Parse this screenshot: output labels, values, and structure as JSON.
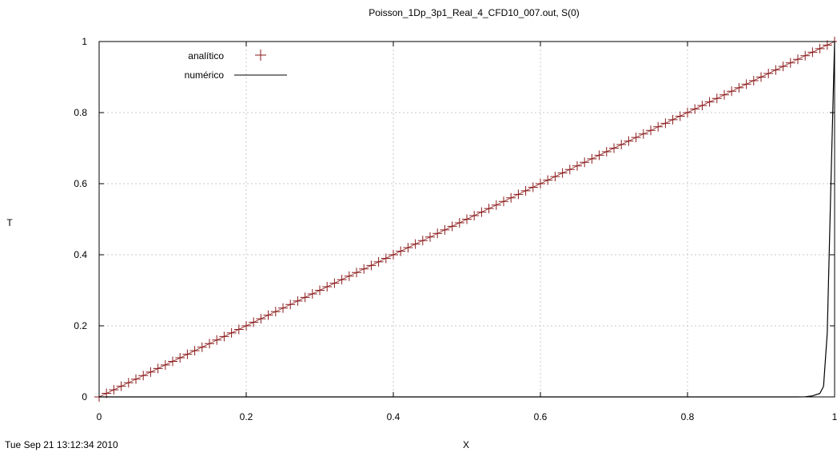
{
  "chart_data": {
    "type": "line",
    "title": "Poisson_1Dp_3p1_Real_4_CFD10_007.out, S(0)",
    "xlabel": "X",
    "ylabel": "T",
    "xlim": [
      0,
      1
    ],
    "ylim": [
      0,
      1
    ],
    "xticks": [
      "0",
      "0.2",
      "0.4",
      "0.6",
      "0.8",
      "1"
    ],
    "yticks": [
      "0",
      "0.2",
      "0.4",
      "0.6",
      "0.8",
      "1"
    ],
    "grid": true,
    "legend_position": "top-left",
    "timestamp": "Tue Sep 21 13:12:34 2010",
    "series": [
      {
        "name": "analítico",
        "style": "points",
        "marker": "plus",
        "color": "#8b1a1a",
        "x_start": 0,
        "x_end": 1,
        "x_step": 0.01,
        "relation": "T = x"
      },
      {
        "name": "numérico",
        "style": "line",
        "color": "#000000",
        "x": [
          0,
          0.5,
          0.9,
          0.95,
          0.96,
          0.97,
          0.98,
          0.985,
          0.99,
          0.995,
          1.0
        ],
        "y": [
          0,
          0,
          0,
          0,
          0.0005,
          0.003,
          0.01,
          0.03,
          0.18,
          0.6,
          1.0
        ]
      }
    ]
  }
}
